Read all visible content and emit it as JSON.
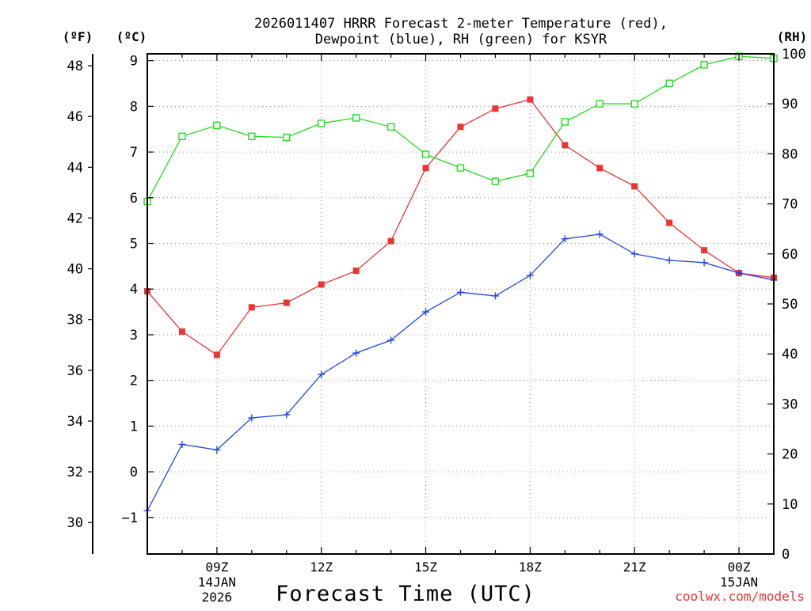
{
  "chart_data": {
    "type": "line",
    "title_line1": "2026011407 HRRR Forecast 2-meter Temperature (red),",
    "title_line2": "Dewpoint (blue), RH (green) for KSYR",
    "xlabel": "Forecast Time (UTC)",
    "credit": "coolwx.com/models",
    "unit_f": "(ºF)",
    "unit_c": "(ºC)",
    "unit_rh": "(RH)",
    "x_hours": [
      7,
      8,
      9,
      10,
      11,
      12,
      13,
      14,
      15,
      16,
      17,
      18,
      19,
      20,
      21,
      22,
      23,
      24,
      25
    ],
    "xlim": [
      7,
      25
    ],
    "x_ticks": [
      {
        "hour": 9,
        "lines": [
          "09Z",
          "14JAN",
          "2026"
        ]
      },
      {
        "hour": 12,
        "lines": [
          "12Z"
        ]
      },
      {
        "hour": 15,
        "lines": [
          "15Z"
        ]
      },
      {
        "hour": 18,
        "lines": [
          "18Z"
        ]
      },
      {
        "hour": 21,
        "lines": [
          "21Z"
        ]
      },
      {
        "hour": 24,
        "lines": [
          "00Z",
          "15JAN"
        ]
      }
    ],
    "ylim_c": [
      -1.8,
      9.15
    ],
    "y_ticks_c": [
      -1,
      0,
      1,
      2,
      3,
      4,
      5,
      6,
      7,
      8,
      9
    ],
    "y_tick_labels_c": [
      "−1",
      "0",
      "1",
      "2",
      "3",
      "4",
      "5",
      "6",
      "7",
      "8",
      "9"
    ],
    "y_ticks_f": [
      30,
      32,
      34,
      36,
      38,
      40,
      42,
      44,
      46,
      48
    ],
    "y_tick_labels_f": [
      "30",
      "32",
      "34",
      "36",
      "38",
      "40",
      "42",
      "44",
      "46",
      "48"
    ],
    "ylim_rh": [
      0,
      100
    ],
    "y_ticks_rh": [
      0,
      10,
      20,
      30,
      40,
      50,
      60,
      70,
      80,
      90,
      100
    ],
    "y_tick_labels_rh": [
      "0",
      "10",
      "20",
      "30",
      "40",
      "50",
      "60",
      "70",
      "80",
      "90",
      "100"
    ],
    "series": [
      {
        "name": "Temperature",
        "axis": "c",
        "color": "#ee3333",
        "marker": "filled-square",
        "values": [
          3.95,
          3.07,
          2.56,
          3.6,
          3.7,
          4.1,
          4.4,
          5.05,
          6.65,
          7.55,
          7.95,
          8.15,
          7.15,
          6.65,
          6.25,
          5.45,
          4.85,
          4.35,
          4.25
        ]
      },
      {
        "name": "Dewpoint",
        "axis": "c",
        "color": "#2244ee",
        "marker": "plus",
        "values": [
          -0.85,
          0.6,
          0.48,
          1.18,
          1.25,
          2.13,
          2.6,
          2.88,
          3.5,
          3.93,
          3.85,
          4.3,
          5.1,
          5.2,
          4.77,
          4.63,
          4.58,
          4.35,
          4.2
        ]
      },
      {
        "name": "RH",
        "axis": "rh",
        "color": "#22dd22",
        "marker": "open-square",
        "values": [
          70.5,
          83.5,
          85.7,
          83.5,
          83.3,
          86.1,
          87.2,
          85.4,
          79.9,
          77.2,
          74.5,
          76.1,
          86.4,
          90.0,
          90.0,
          94.1,
          97.8,
          99.5,
          99.1
        ]
      }
    ]
  }
}
